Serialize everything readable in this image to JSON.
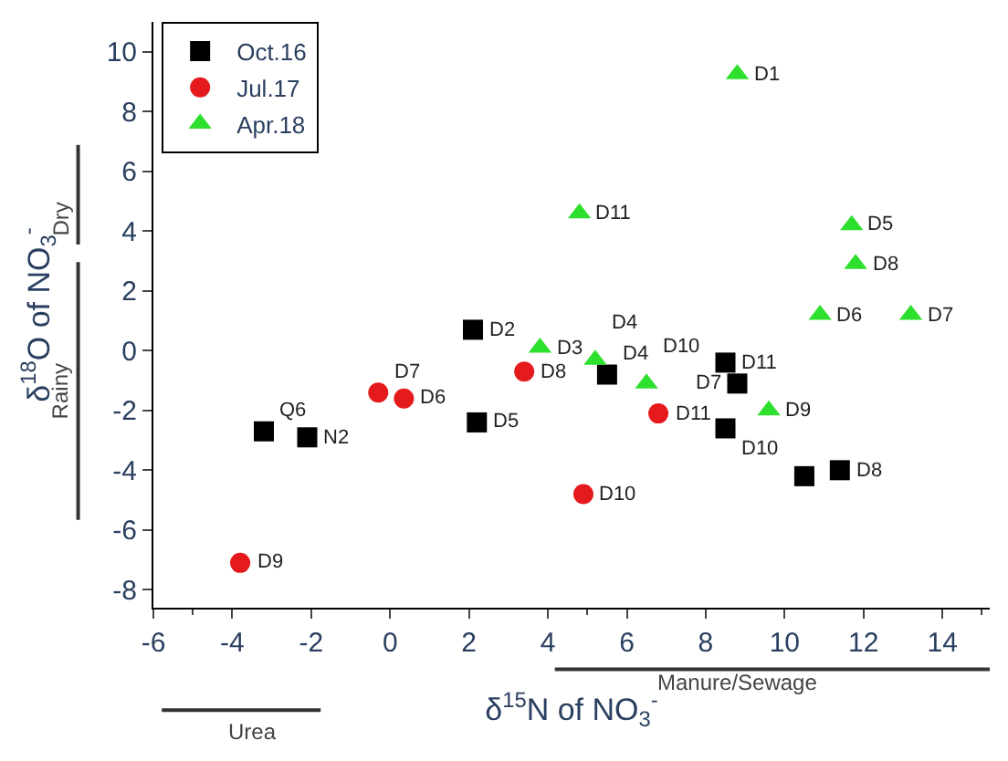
{
  "chart_data": {
    "type": "scatter",
    "xlabel": "δ$^{15}$N of NO$_{3}$$^{-}$",
    "ylabel": "δ$^{18}$O of NO$_{3}$$^{-}$",
    "xlim": [
      -6,
      15.2
    ],
    "ylim": [
      -8.6,
      11
    ],
    "xticks": [
      -6,
      -4,
      -2,
      0,
      2,
      4,
      6,
      8,
      10,
      12,
      14
    ],
    "yticks": [
      -8,
      -6,
      -4,
      -2,
      0,
      2,
      4,
      6,
      8,
      10
    ],
    "legend": "top left",
    "series": [
      {
        "name": "Oct.16",
        "color": "#000000",
        "marker": "square",
        "x": [
          -3.2,
          -2.1,
          2.1,
          2.2,
          5.5,
          8.5,
          8.8,
          8.5,
          10.5,
          11.4
        ],
        "values": [
          -2.7,
          -2.9,
          0.7,
          -2.4,
          -0.8,
          -0.4,
          -1.1,
          -2.6,
          -4.2,
          -4.0
        ]
      },
      {
        "name": "Jul.17",
        "color": "#e41a1c",
        "marker": "circle",
        "x": [
          -3.8,
          -0.3,
          0.35,
          3.4,
          6.8,
          4.9
        ],
        "values": [
          -7.1,
          -1.4,
          -1.6,
          -0.7,
          -2.1,
          -4.8
        ]
      },
      {
        "name": "Apr.18",
        "color": "#2ee02e",
        "marker": "triangle",
        "x": [
          8.8,
          4.8,
          11.7,
          11.8,
          10.9,
          13.2,
          3.8,
          5.2,
          6.5,
          9.6
        ],
        "values": [
          9.25,
          4.6,
          4.2,
          2.9,
          1.2,
          1.2,
          0.1,
          -0.3,
          -1.1,
          -2.0
        ]
      }
    ],
    "annotations": [
      {
        "text": "Q6",
        "x": -3.2,
        "y": -2.7
      },
      {
        "text": "N2",
        "x": -2.1,
        "y": -2.9
      },
      {
        "text": "D2",
        "x": 2.1,
        "y": 0.7
      },
      {
        "text": "D5",
        "x": 2.2,
        "y": -2.4
      },
      {
        "text": "D4",
        "x": 5.5,
        "y": -0.8
      },
      {
        "text": "D11",
        "x": 8.5,
        "y": -0.4
      },
      {
        "text": "D7",
        "x": 8.8,
        "y": -1.1
      },
      {
        "text": "D10",
        "x": 8.5,
        "y": -2.6
      },
      {
        "text": "D8",
        "x": 11.4,
        "y": -4.0
      },
      {
        "text": "D9",
        "x": -3.8,
        "y": -7.1
      },
      {
        "text": "D7",
        "x": -0.3,
        "y": -1.4
      },
      {
        "text": "D6",
        "x": 0.35,
        "y": -1.6
      },
      {
        "text": "D8",
        "x": 3.4,
        "y": -0.7
      },
      {
        "text": "D11",
        "x": 6.8,
        "y": -2.1
      },
      {
        "text": "D10",
        "x": 4.9,
        "y": -4.8
      },
      {
        "text": "D1",
        "x": 8.8,
        "y": 9.25
      },
      {
        "text": "D11",
        "x": 4.8,
        "y": 4.6
      },
      {
        "text": "D5",
        "x": 11.7,
        "y": 4.2
      },
      {
        "text": "D8",
        "x": 11.8,
        "y": 2.9
      },
      {
        "text": "D6",
        "x": 10.9,
        "y": 1.2
      },
      {
        "text": "D7",
        "x": 13.2,
        "y": 1.2
      },
      {
        "text": "D3",
        "x": 3.8,
        "y": 0.1
      },
      {
        "text": "D4",
        "x": 5.2,
        "y": -0.3
      },
      {
        "text": "D10",
        "x": 6.5,
        "y": -1.1
      },
      {
        "text": "D9",
        "x": 9.6,
        "y": -2.0
      },
      "Dry",
      "Rainy",
      "Urea",
      "Manure/Sewage"
    ]
  }
}
